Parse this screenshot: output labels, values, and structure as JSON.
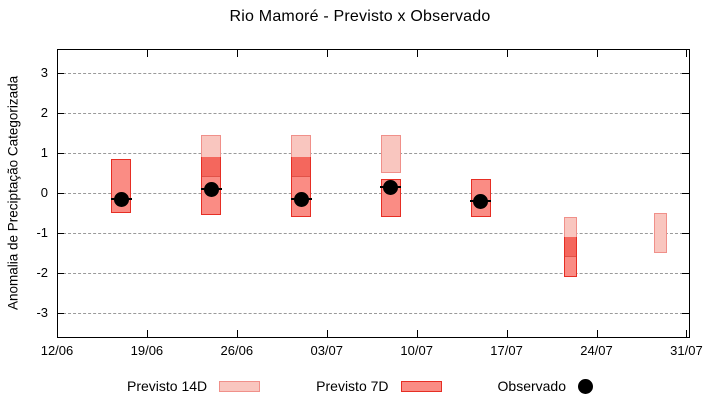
{
  "title": "Rio Mamoré - Previsto x Observado",
  "ylabel": "Anomalia de Preciptação Categorizada",
  "colors": {
    "forecast14_fill": "#f9c6bf",
    "forecast14_border": "#f0908a",
    "forecast7_fill": "#fa8c84",
    "forecast7_border": "#e62e24",
    "overlap_fill": "#f4675d",
    "overlap_edge": "#e05248",
    "observed": "#000000",
    "grid": "#9a9a9a"
  },
  "chart_data": {
    "type": "bar",
    "title": "Rio Mamoré - Previsto x Observado",
    "xlabel": "",
    "ylabel": "Anomalia de Preciptação Categorizada",
    "ylim": [
      -3.6,
      3.6
    ],
    "y_ticks": [
      3,
      2,
      1,
      0,
      -1,
      -2,
      -3
    ],
    "x_tick_labels": [
      "12/06",
      "19/06",
      "26/06",
      "03/07",
      "10/07",
      "17/07",
      "24/07",
      "31/07"
    ],
    "x_axis": {
      "start_label": "12/06",
      "days_per_tick": 7,
      "total_days": 49.2
    },
    "grid": "dashed horizontal",
    "legend_position": "bottom-center",
    "series": [
      {
        "name": "Previsto 14D",
        "type": "range_bar",
        "bars": [
          {
            "date": "24/06",
            "day": 12,
            "high": 1.45,
            "low": 0.4
          },
          {
            "date": "01/07",
            "day": 19,
            "high": 1.45,
            "low": 0.4
          },
          {
            "date": "08/07",
            "day": 26,
            "high": 1.45,
            "low": 0.5
          },
          {
            "date": "22/07",
            "day": 40,
            "high": -0.6,
            "low": -1.6
          },
          {
            "date": "29/07",
            "day": 47,
            "high": -0.5,
            "low": -1.5
          }
        ]
      },
      {
        "name": "Previsto 7D",
        "type": "range_bar",
        "bars": [
          {
            "date": "17/06",
            "day": 5,
            "high": 0.85,
            "low": -0.5
          },
          {
            "date": "24/06",
            "day": 12,
            "high": 0.9,
            "low": -0.55
          },
          {
            "date": "01/07",
            "day": 19,
            "high": 0.9,
            "low": -0.6
          },
          {
            "date": "08/07",
            "day": 26,
            "high": 0.35,
            "low": -0.6
          },
          {
            "date": "15/07",
            "day": 33,
            "high": 0.35,
            "low": -0.6
          },
          {
            "date": "22/07",
            "day": 40,
            "high": -1.1,
            "low": -2.1
          }
        ]
      },
      {
        "name": "Observado",
        "type": "point",
        "points": [
          {
            "date": "17/06",
            "day": 5,
            "value": -0.15
          },
          {
            "date": "24/06",
            "day": 12,
            "value": 0.1
          },
          {
            "date": "01/07",
            "day": 19,
            "value": -0.15
          },
          {
            "date": "08/07",
            "day": 26,
            "value": 0.15
          },
          {
            "date": "15/07",
            "day": 33,
            "value": -0.2
          }
        ]
      }
    ]
  }
}
